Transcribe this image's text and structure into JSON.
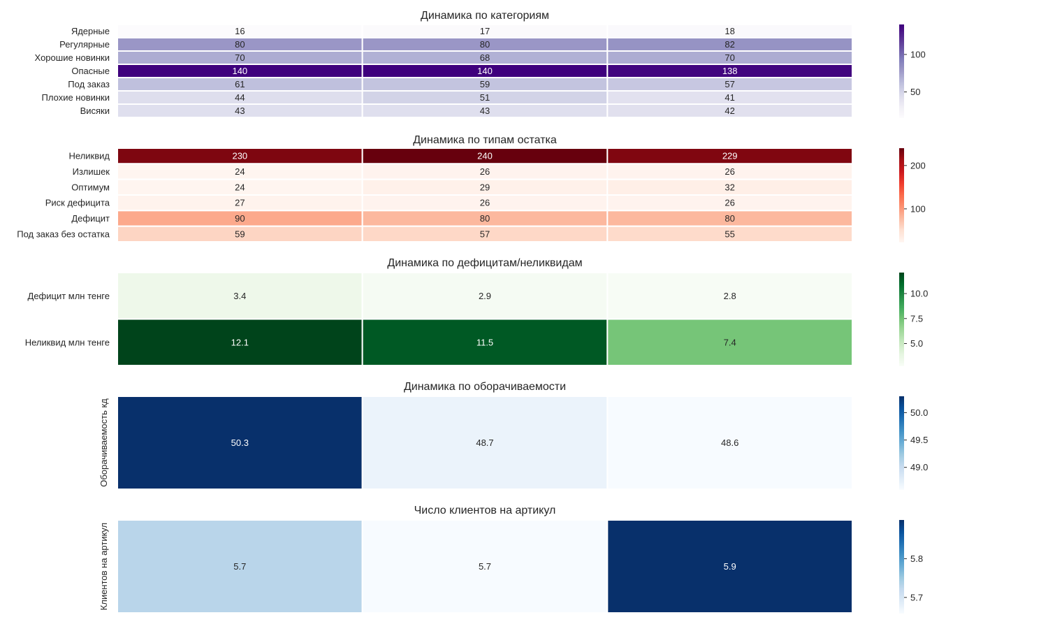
{
  "chart_data": [
    {
      "type": "heatmap",
      "title": "Динамика по категориям",
      "rows": [
        "Ядерные",
        "Регулярные",
        "Хорошие новинки",
        "Опасные",
        "Под заказ",
        "Плохие новинки",
        "Висяки"
      ],
      "columns": [],
      "values": [
        [
          16,
          17,
          18
        ],
        [
          80,
          80,
          82
        ],
        [
          70,
          68,
          70
        ],
        [
          140,
          140,
          138
        ],
        [
          61,
          59,
          57
        ],
        [
          44,
          51,
          41
        ],
        [
          43,
          43,
          42
        ]
      ],
      "value_labels": [
        [
          "16",
          "17",
          "18"
        ],
        [
          "80",
          "80",
          "82"
        ],
        [
          "70",
          "68",
          "70"
        ],
        [
          "140",
          "140",
          "138"
        ],
        [
          "61",
          "59",
          "57"
        ],
        [
          "44",
          "51",
          "41"
        ],
        [
          "43",
          "43",
          "42"
        ]
      ],
      "ylabel": "",
      "colormap": "Purples",
      "vmin": 16,
      "vmax": 140,
      "colorbar_ticks": [
        "50",
        "100"
      ],
      "colorbar_tick_values": [
        50,
        100
      ]
    },
    {
      "type": "heatmap",
      "title": "Динамика по типам остатка",
      "rows": [
        "Неликвид",
        "Излишек",
        "Оптимум",
        "Риск дефицита",
        "Дефицит",
        "Под заказ без остатка"
      ],
      "columns": [],
      "values": [
        [
          230,
          240,
          229
        ],
        [
          24,
          26,
          26
        ],
        [
          24,
          29,
          32
        ],
        [
          27,
          26,
          26
        ],
        [
          90,
          80,
          80
        ],
        [
          59,
          57,
          55
        ]
      ],
      "value_labels": [
        [
          "230",
          "240",
          "229"
        ],
        [
          "24",
          "26",
          "26"
        ],
        [
          "24",
          "29",
          "32"
        ],
        [
          "27",
          "26",
          "26"
        ],
        [
          "90",
          "80",
          "80"
        ],
        [
          "59",
          "57",
          "55"
        ]
      ],
      "ylabel": "",
      "colormap": "Reds",
      "vmin": 24,
      "vmax": 240,
      "colorbar_ticks": [
        "100",
        "200"
      ],
      "colorbar_tick_values": [
        100,
        200
      ]
    },
    {
      "type": "heatmap",
      "title": "Динамика по дефицитам/неликвидам",
      "rows": [
        "Дефицит млн тенге",
        "Неликвид млн тенге"
      ],
      "columns": [],
      "values": [
        [
          3.4,
          2.9,
          2.8
        ],
        [
          12.1,
          11.5,
          7.4
        ]
      ],
      "value_labels": [
        [
          "3.4",
          "2.9",
          "2.8"
        ],
        [
          "12.1",
          "11.5",
          "7.4"
        ]
      ],
      "ylabel": "",
      "colormap": "Greens",
      "vmin": 2.8,
      "vmax": 12.1,
      "colorbar_ticks": [
        "5.0",
        "7.5",
        "10.0"
      ],
      "colorbar_tick_values": [
        5.0,
        7.5,
        10.0
      ]
    },
    {
      "type": "heatmap",
      "title": "Динамика по оборачиваемости",
      "rows": [
        ""
      ],
      "columns": [],
      "values": [
        [
          50.3,
          48.7,
          48.6
        ]
      ],
      "value_labels": [
        [
          "50.3",
          "48.7",
          "48.6"
        ]
      ],
      "ylabel": "Оборачиваемость кд",
      "colormap": "Blues",
      "vmin": 48.6,
      "vmax": 50.3,
      "colorbar_ticks": [
        "49.0",
        "49.5",
        "50.0"
      ],
      "colorbar_tick_values": [
        49.0,
        49.5,
        50.0
      ]
    },
    {
      "type": "heatmap",
      "title": "Число клиентов на артикул",
      "rows": [
        ""
      ],
      "columns": [],
      "values": [
        [
          5.73,
          5.66,
          5.9
        ]
      ],
      "value_labels": [
        [
          "5.7",
          "5.7",
          "5.9"
        ]
      ],
      "ylabel": "Клиентов на артикул",
      "colormap": "Blues",
      "vmin": 5.66,
      "vmax": 5.9,
      "colorbar_ticks": [
        "5.7",
        "5.8"
      ],
      "colorbar_tick_values": [
        5.7,
        5.8
      ]
    }
  ],
  "colors": {
    "grid_line": "#ffffff",
    "text_dark": "#262626",
    "text_light": "#ffffff",
    "purples": [
      "#fcfbfd",
      "#efedf5",
      "#dadaeb",
      "#bcbddc",
      "#9e9ac8",
      "#807dba",
      "#6a51a3",
      "#54278f",
      "#3f007d"
    ],
    "reds": [
      "#fff5f0",
      "#fee0d2",
      "#fcbba1",
      "#fc9272",
      "#fb6a4a",
      "#ef3b2c",
      "#cb181d",
      "#a50f15",
      "#67000d"
    ],
    "greens": [
      "#f7fcf5",
      "#e5f5e0",
      "#c7e9c0",
      "#a1d99b",
      "#74c476",
      "#41ab5d",
      "#238b45",
      "#006d2c",
      "#00441b"
    ],
    "blues": [
      "#f7fbff",
      "#deebf7",
      "#c6dbef",
      "#9ecae1",
      "#6baed6",
      "#4292c6",
      "#2171b5",
      "#08519c",
      "#08306b"
    ]
  }
}
